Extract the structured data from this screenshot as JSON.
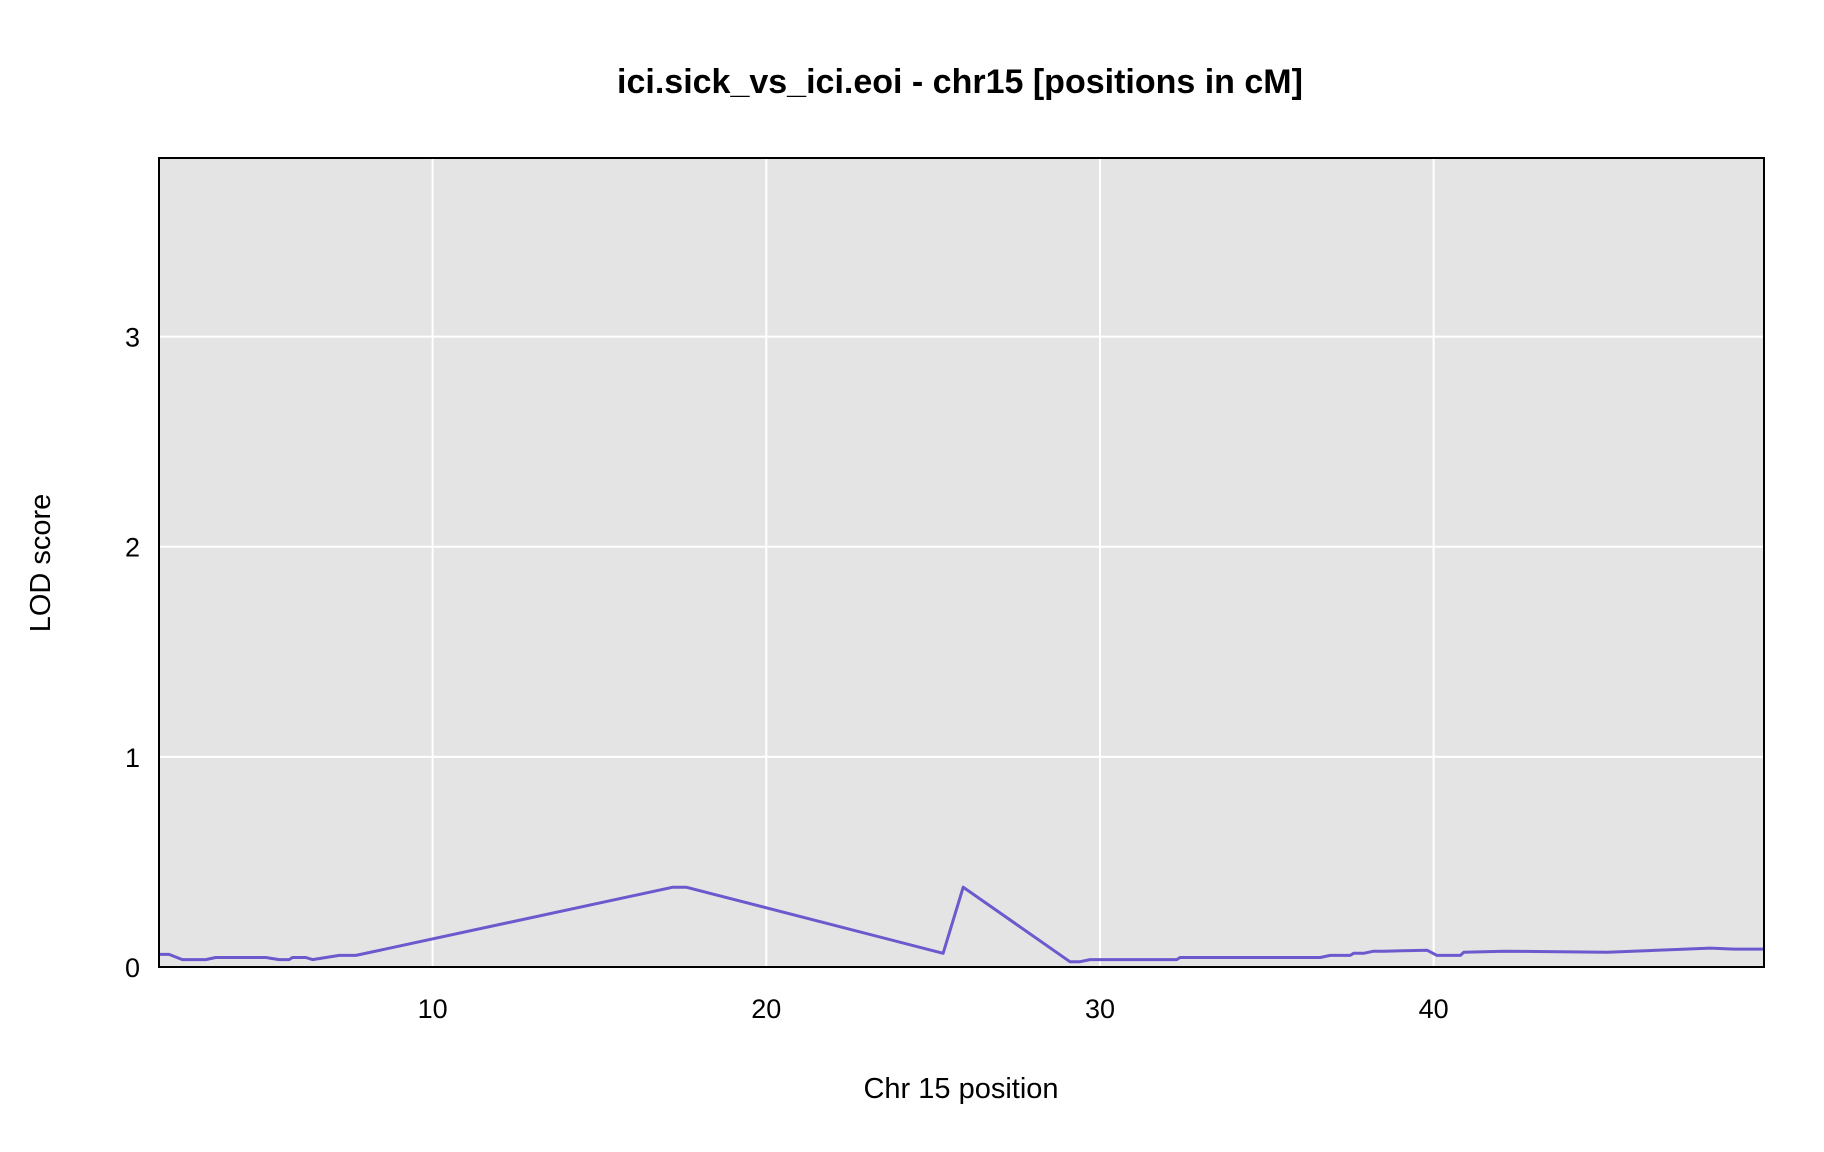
{
  "chart_data": {
    "type": "line",
    "title": "ici.sick_vs_ici.eoi - chr15 [positions in cM]",
    "xlabel": "Chr 15 position",
    "ylabel": "LOD score",
    "xlim": [
      1.8,
      49.9
    ],
    "ylim": [
      0,
      3.85
    ],
    "xticks": [
      10,
      20,
      30,
      40
    ],
    "yticks": [
      0,
      1,
      2,
      3
    ],
    "grid": true,
    "background_color": "#e4e4e4",
    "line_color": "#6a5acd",
    "baseline_color": "#1a1a8c",
    "series": [
      {
        "x": [
          1.8,
          2.1,
          2.5,
          3.0,
          3.2,
          3.5,
          4.0,
          5.0,
          5.4,
          5.7,
          5.8,
          6.2,
          6.4,
          7.2,
          7.7,
          17.2,
          17.6,
          25.3,
          25.9,
          29.1,
          29.4,
          29.7,
          32.3,
          32.4,
          36.6,
          36.9,
          37.5,
          37.6,
          37.9,
          38.2,
          38.5,
          39.8,
          40.1,
          40.8,
          40.9,
          42.1,
          45.2,
          48.3,
          49.0,
          49.9
        ],
        "y": [
          0.06,
          0.06,
          0.035,
          0.035,
          0.035,
          0.045,
          0.045,
          0.045,
          0.035,
          0.035,
          0.045,
          0.045,
          0.035,
          0.055,
          0.055,
          0.38,
          0.38,
          0.065,
          0.38,
          0.025,
          0.025,
          0.035,
          0.035,
          0.045,
          0.045,
          0.055,
          0.055,
          0.065,
          0.065,
          0.075,
          0.075,
          0.08,
          0.055,
          0.055,
          0.07,
          0.075,
          0.07,
          0.09,
          0.085,
          0.085
        ]
      }
    ]
  }
}
